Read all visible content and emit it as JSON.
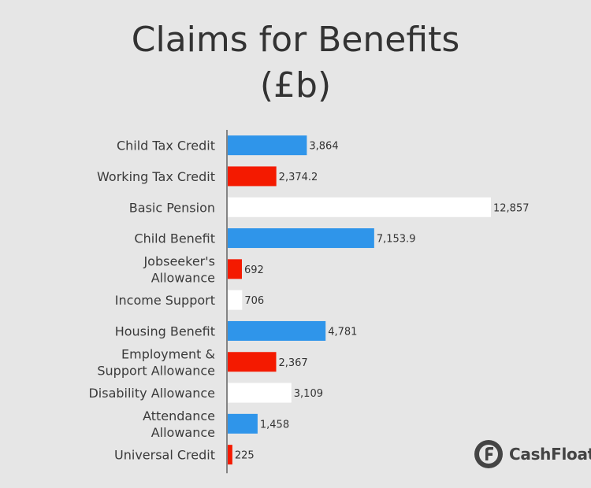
{
  "chart_data": {
    "type": "bar",
    "orientation": "horizontal",
    "title": "Claims for Benefits",
    "subtitle": "(£b)",
    "categories": [
      "Child Tax Credit",
      "Working Tax Credit",
      "Basic Pension",
      "Child Benefit",
      "Jobseeker's Allowance",
      "Income Support",
      "Housing Benefit",
      "Employment & Support Allowance",
      "Disability Allowance",
      "Attendance Allowance",
      "Universal Credit"
    ],
    "category_lines": [
      [
        "Child Tax Credit"
      ],
      [
        "Working Tax Credit"
      ],
      [
        "Basic Pension"
      ],
      [
        "Child Benefit"
      ],
      [
        "Jobseeker's",
        "Allowance"
      ],
      [
        "Income Support"
      ],
      [
        "Housing Benefit"
      ],
      [
        "Employment &",
        "Support Allowance"
      ],
      [
        "Disability Allowance"
      ],
      [
        "Attendance",
        "Allowance"
      ],
      [
        "Universal Credit"
      ]
    ],
    "values": [
      3864,
      2374.2,
      12857,
      7153.9,
      692,
      706,
      4781,
      2367,
      3109,
      1458,
      225
    ],
    "value_labels": [
      "3,864",
      "2,374.2",
      "12,857",
      "7,153.9",
      "692",
      "706",
      "4,781",
      "2,367",
      "3,109",
      "1,458",
      "225"
    ],
    "bar_colors": [
      "#2f95ea",
      "#f41a00",
      "#ffffff",
      "#2f95ea",
      "#f41a00",
      "#ffffff",
      "#2f95ea",
      "#f41a00",
      "#ffffff",
      "#2f95ea",
      "#f41a00"
    ],
    "xlim": [
      0,
      12857
    ],
    "grid": false,
    "legend": false
  },
  "logo": {
    "text": "CashFloat",
    "icon": "cashfloat-logo-icon",
    "color": "#444444"
  }
}
